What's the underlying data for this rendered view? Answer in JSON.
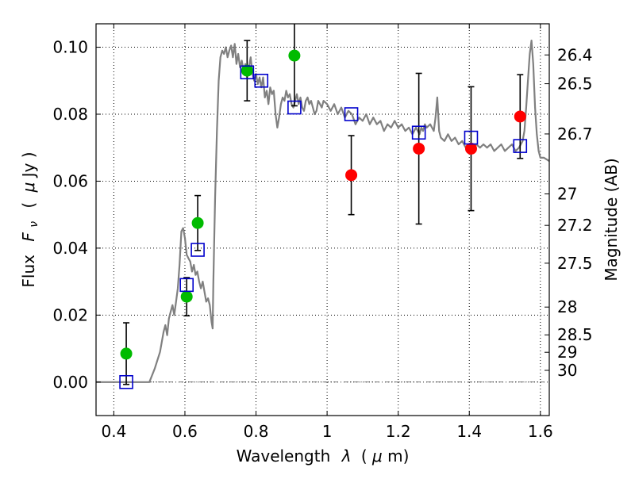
{
  "chart_data": {
    "type": "scatter",
    "title": "",
    "xlabel_prefix": "Wavelength",
    "xlabel_sym": "λ",
    "xlabel_unit_open": "(",
    "xlabel_unit_mu": "μ",
    "xlabel_unit_rest": "m)",
    "ylabel_prefix": "Flux",
    "ylabel_F": "F",
    "ylabel_sub": "ν",
    "ylabel_unit_open": "(",
    "ylabel_unit_mu": "μ",
    "ylabel_unit_rest": "Jy )",
    "y2label": "Magnitude (AB)",
    "xlim": [
      0.35,
      1.625
    ],
    "ylim": [
      -0.01,
      0.107
    ],
    "grid": true,
    "xticks": [
      0.4,
      0.6,
      0.8,
      1.0,
      1.2,
      1.4,
      1.6
    ],
    "xtick_labels": [
      "0.4",
      "0.6",
      "0.8",
      "1",
      "1.2",
      "1.4",
      "1.6"
    ],
    "yticks": [
      0.0,
      0.02,
      0.04,
      0.06,
      0.08,
      0.1
    ],
    "ytick_labels": [
      "0.00",
      "0.02",
      "0.04",
      "0.06",
      "0.08",
      "0.10"
    ],
    "y2ticks": [
      {
        "label": "26.4",
        "flux": 0.0977
      },
      {
        "label": "26.5",
        "flux": 0.0891
      },
      {
        "label": "26.7",
        "flux": 0.0741
      },
      {
        "label": "27",
        "flux": 0.0562
      },
      {
        "label": "27.2",
        "flux": 0.0468
      },
      {
        "label": "27.5",
        "flux": 0.0355
      },
      {
        "label": "28",
        "flux": 0.0224
      },
      {
        "label": "28.5",
        "flux": 0.0141
      },
      {
        "label": "29",
        "flux": 0.0089
      },
      {
        "label": "30",
        "flux": 0.0035
      }
    ],
    "colors": {
      "model": "#808080",
      "synthetic": "#0000cc",
      "green": "#00bb00",
      "red": "#ff0000",
      "errorbar": "#000000"
    },
    "series": [
      {
        "kind": "line",
        "points": [
          [
            0.35,
            0.0
          ],
          [
            0.49,
            0.0
          ],
          [
            0.5,
            0.0
          ],
          [
            0.515,
            0.004
          ],
          [
            0.53,
            0.009
          ],
          [
            0.54,
            0.015
          ],
          [
            0.545,
            0.017
          ],
          [
            0.55,
            0.014
          ],
          [
            0.555,
            0.019
          ],
          [
            0.56,
            0.021
          ],
          [
            0.565,
            0.023
          ],
          [
            0.57,
            0.02
          ],
          [
            0.575,
            0.024
          ],
          [
            0.58,
            0.028
          ],
          [
            0.585,
            0.035
          ],
          [
            0.59,
            0.045
          ],
          [
            0.595,
            0.046
          ],
          [
            0.6,
            0.043
          ],
          [
            0.605,
            0.038
          ],
          [
            0.61,
            0.037
          ],
          [
            0.615,
            0.036
          ],
          [
            0.62,
            0.033
          ],
          [
            0.625,
            0.035
          ],
          [
            0.63,
            0.032
          ],
          [
            0.635,
            0.033
          ],
          [
            0.64,
            0.03
          ],
          [
            0.645,
            0.028
          ],
          [
            0.65,
            0.03
          ],
          [
            0.655,
            0.027
          ],
          [
            0.66,
            0.024
          ],
          [
            0.665,
            0.025
          ],
          [
            0.67,
            0.023
          ],
          [
            0.675,
            0.018
          ],
          [
            0.678,
            0.016
          ],
          [
            0.68,
            0.03
          ],
          [
            0.685,
            0.055
          ],
          [
            0.69,
            0.075
          ],
          [
            0.695,
            0.09
          ],
          [
            0.7,
            0.097
          ],
          [
            0.705,
            0.099
          ],
          [
            0.71,
            0.098
          ],
          [
            0.715,
            0.1
          ],
          [
            0.72,
            0.097
          ],
          [
            0.725,
            0.099
          ],
          [
            0.73,
            0.1005
          ],
          [
            0.735,
            0.097
          ],
          [
            0.74,
            0.101
          ],
          [
            0.745,
            0.095
          ],
          [
            0.75,
            0.098
          ],
          [
            0.755,
            0.094
          ],
          [
            0.76,
            0.096
          ],
          [
            0.765,
            0.093
          ],
          [
            0.77,
            0.095
          ],
          [
            0.775,
            0.091
          ],
          [
            0.78,
            0.094
          ],
          [
            0.785,
            0.097
          ],
          [
            0.79,
            0.092
          ],
          [
            0.795,
            0.09
          ],
          [
            0.8,
            0.092
          ],
          [
            0.805,
            0.089
          ],
          [
            0.81,
            0.091
          ],
          [
            0.815,
            0.088
          ],
          [
            0.82,
            0.091
          ],
          [
            0.825,
            0.085
          ],
          [
            0.83,
            0.087
          ],
          [
            0.835,
            0.083
          ],
          [
            0.84,
            0.088
          ],
          [
            0.845,
            0.086
          ],
          [
            0.85,
            0.087
          ],
          [
            0.855,
            0.08
          ],
          [
            0.86,
            0.076
          ],
          [
            0.865,
            0.079
          ],
          [
            0.87,
            0.083
          ],
          [
            0.875,
            0.085
          ],
          [
            0.88,
            0.084
          ],
          [
            0.885,
            0.087
          ],
          [
            0.89,
            0.085
          ],
          [
            0.895,
            0.086
          ],
          [
            0.9,
            0.083
          ],
          [
            0.905,
            0.082
          ],
          [
            0.91,
            0.084
          ],
          [
            0.915,
            0.086
          ],
          [
            0.92,
            0.083
          ],
          [
            0.925,
            0.085
          ],
          [
            0.93,
            0.082
          ],
          [
            0.935,
            0.081
          ],
          [
            0.94,
            0.084
          ],
          [
            0.945,
            0.085
          ],
          [
            0.95,
            0.083
          ],
          [
            0.955,
            0.084
          ],
          [
            0.96,
            0.082
          ],
          [
            0.965,
            0.08
          ],
          [
            0.97,
            0.081
          ],
          [
            0.975,
            0.084
          ],
          [
            0.98,
            0.083
          ],
          [
            0.985,
            0.082
          ],
          [
            0.99,
            0.084
          ],
          [
            1.0,
            0.083
          ],
          [
            1.01,
            0.081
          ],
          [
            1.02,
            0.083
          ],
          [
            1.03,
            0.08
          ],
          [
            1.04,
            0.082
          ],
          [
            1.05,
            0.079
          ],
          [
            1.06,
            0.081
          ],
          [
            1.07,
            0.08
          ],
          [
            1.08,
            0.077
          ],
          [
            1.09,
            0.079
          ],
          [
            1.1,
            0.078
          ],
          [
            1.11,
            0.08
          ],
          [
            1.12,
            0.077
          ],
          [
            1.13,
            0.079
          ],
          [
            1.14,
            0.077
          ],
          [
            1.15,
            0.078
          ],
          [
            1.16,
            0.075
          ],
          [
            1.17,
            0.077
          ],
          [
            1.18,
            0.076
          ],
          [
            1.19,
            0.078
          ],
          [
            1.2,
            0.076
          ],
          [
            1.21,
            0.077
          ],
          [
            1.22,
            0.075
          ],
          [
            1.23,
            0.076
          ],
          [
            1.24,
            0.074
          ],
          [
            1.25,
            0.076
          ],
          [
            1.26,
            0.074
          ],
          [
            1.265,
            0.076
          ],
          [
            1.27,
            0.075
          ],
          [
            1.275,
            0.077
          ],
          [
            1.28,
            0.076
          ],
          [
            1.29,
            0.077
          ],
          [
            1.3,
            0.075
          ],
          [
            1.305,
            0.079
          ],
          [
            1.31,
            0.085
          ],
          [
            1.315,
            0.075
          ],
          [
            1.32,
            0.073
          ],
          [
            1.33,
            0.072
          ],
          [
            1.34,
            0.074
          ],
          [
            1.35,
            0.072
          ],
          [
            1.36,
            0.073
          ],
          [
            1.37,
            0.071
          ],
          [
            1.38,
            0.072
          ],
          [
            1.39,
            0.07
          ],
          [
            1.4,
            0.071
          ],
          [
            1.41,
            0.07
          ],
          [
            1.42,
            0.071
          ],
          [
            1.43,
            0.07
          ],
          [
            1.44,
            0.071
          ],
          [
            1.45,
            0.07
          ],
          [
            1.46,
            0.071
          ],
          [
            1.47,
            0.069
          ],
          [
            1.48,
            0.07
          ],
          [
            1.49,
            0.071
          ],
          [
            1.5,
            0.069
          ],
          [
            1.51,
            0.07
          ],
          [
            1.52,
            0.071
          ],
          [
            1.53,
            0.069
          ],
          [
            1.54,
            0.07
          ],
          [
            1.55,
            0.072
          ],
          [
            1.555,
            0.075
          ],
          [
            1.56,
            0.082
          ],
          [
            1.565,
            0.09
          ],
          [
            1.57,
            0.098
          ],
          [
            1.575,
            0.102
          ],
          [
            1.58,
            0.095
          ],
          [
            1.585,
            0.082
          ],
          [
            1.59,
            0.074
          ],
          [
            1.595,
            0.069
          ],
          [
            1.6,
            0.067
          ],
          [
            1.61,
            0.067
          ],
          [
            1.625,
            0.066
          ]
        ]
      },
      {
        "kind": "points",
        "marker": "circle",
        "color_key": "green",
        "points": [
          {
            "x": 0.435,
            "y": 0.0085,
            "yerr": 0.0092
          },
          {
            "x": 0.605,
            "y": 0.0255,
            "yerr": 0.0057
          },
          {
            "x": 0.636,
            "y": 0.0475,
            "yerr": 0.0082
          },
          {
            "x": 0.775,
            "y": 0.093,
            "yerr": 0.009
          },
          {
            "x": 0.908,
            "y": 0.0975,
            "yerr": 0.015
          }
        ]
      },
      {
        "kind": "points",
        "marker": "circle",
        "color_key": "red",
        "points": [
          {
            "x": 1.068,
            "y": 0.0618,
            "yerr": 0.0118
          },
          {
            "x": 1.258,
            "y": 0.0697,
            "yerr": 0.0225
          },
          {
            "x": 1.405,
            "y": 0.0697,
            "yerr": 0.0185
          },
          {
            "x": 1.543,
            "y": 0.0793,
            "yerr": 0.0125
          }
        ]
      },
      {
        "kind": "points",
        "marker": "square",
        "color_key": "synthetic",
        "points": [
          {
            "x": 0.435,
            "y": 0.0
          },
          {
            "x": 0.605,
            "y": 0.029
          },
          {
            "x": 0.636,
            "y": 0.0395
          },
          {
            "x": 0.775,
            "y": 0.0925
          },
          {
            "x": 0.815,
            "y": 0.09
          },
          {
            "x": 0.908,
            "y": 0.082
          },
          {
            "x": 1.068,
            "y": 0.08
          },
          {
            "x": 1.258,
            "y": 0.0745
          },
          {
            "x": 1.405,
            "y": 0.073
          },
          {
            "x": 1.543,
            "y": 0.0705
          }
        ]
      }
    ]
  }
}
